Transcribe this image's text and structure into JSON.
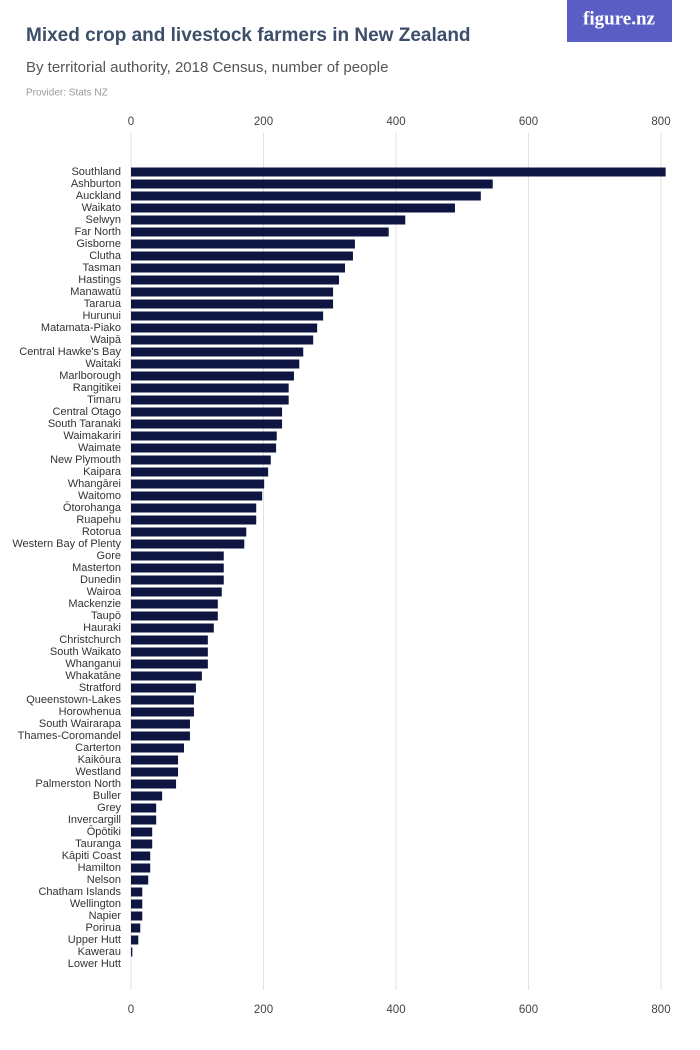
{
  "brand": "figure.nz",
  "chart_data": {
    "type": "hbar",
    "title": "Mixed crop and livestock farmers in New Zealand",
    "subtitle": "By territorial authority, 2018 Census, number of people",
    "source": "Provider: Stats NZ",
    "color": "#0d1540",
    "grid": true,
    "xlim": [
      0,
      800
    ],
    "xticks": [
      0,
      200,
      400,
      600,
      800
    ],
    "categories": [
      "Southland",
      "Ashburton",
      "Auckland",
      "Waikato",
      "Selwyn",
      "Far North",
      "Gisborne",
      "Clutha",
      "Tasman",
      "Hastings",
      "Manawatū",
      "Tararua",
      "Hurunui",
      "Matamata-Piako",
      "Waipā",
      "Central Hawke's Bay",
      "Waitaki",
      "Marlborough",
      "Rangitikei",
      "Timaru",
      "Central Otago",
      "South Taranaki",
      "Waimakariri",
      "Waimate",
      "New Plymouth",
      "Kaipara",
      "Whangārei",
      "Waitomo",
      "Ōtorohanga",
      "Ruapehu",
      "Rotorua",
      "Western Bay of Plenty",
      "Gore",
      "Masterton",
      "Dunedin",
      "Wairoa",
      "Mackenzie",
      "Taupō",
      "Hauraki",
      "Christchurch",
      "South Waikato",
      "Whanganui",
      "Whakatāne",
      "Stratford",
      "Queenstown-Lakes",
      "Horowhenua",
      "South Wairarapa",
      "Thames-Coromandel",
      "Carterton",
      "Kaikōura",
      "Westland",
      "Palmerston North",
      "Buller",
      "Grey",
      "Invercargill",
      "Ōpōtiki",
      "Tauranga",
      "Kāpiti Coast",
      "Hamilton",
      "Nelson",
      "Chatham Islands",
      "Wellington",
      "Napier",
      "Porirua",
      "Upper Hutt",
      "Kawerau",
      "Lower Hutt"
    ],
    "values": [
      807,
      546,
      528,
      489,
      414,
      389,
      338,
      335,
      323,
      314,
      305,
      305,
      290,
      281,
      275,
      260,
      254,
      246,
      238,
      238,
      228,
      228,
      220,
      219,
      211,
      207,
      201,
      198,
      189,
      189,
      174,
      171,
      140,
      140,
      140,
      137,
      131,
      131,
      125,
      116,
      116,
      116,
      107,
      98,
      95,
      95,
      89,
      89,
      80,
      71,
      71,
      68,
      47,
      38,
      38,
      32,
      32,
      29,
      29,
      26,
      17,
      17,
      17,
      14,
      11,
      2,
      0
    ]
  }
}
